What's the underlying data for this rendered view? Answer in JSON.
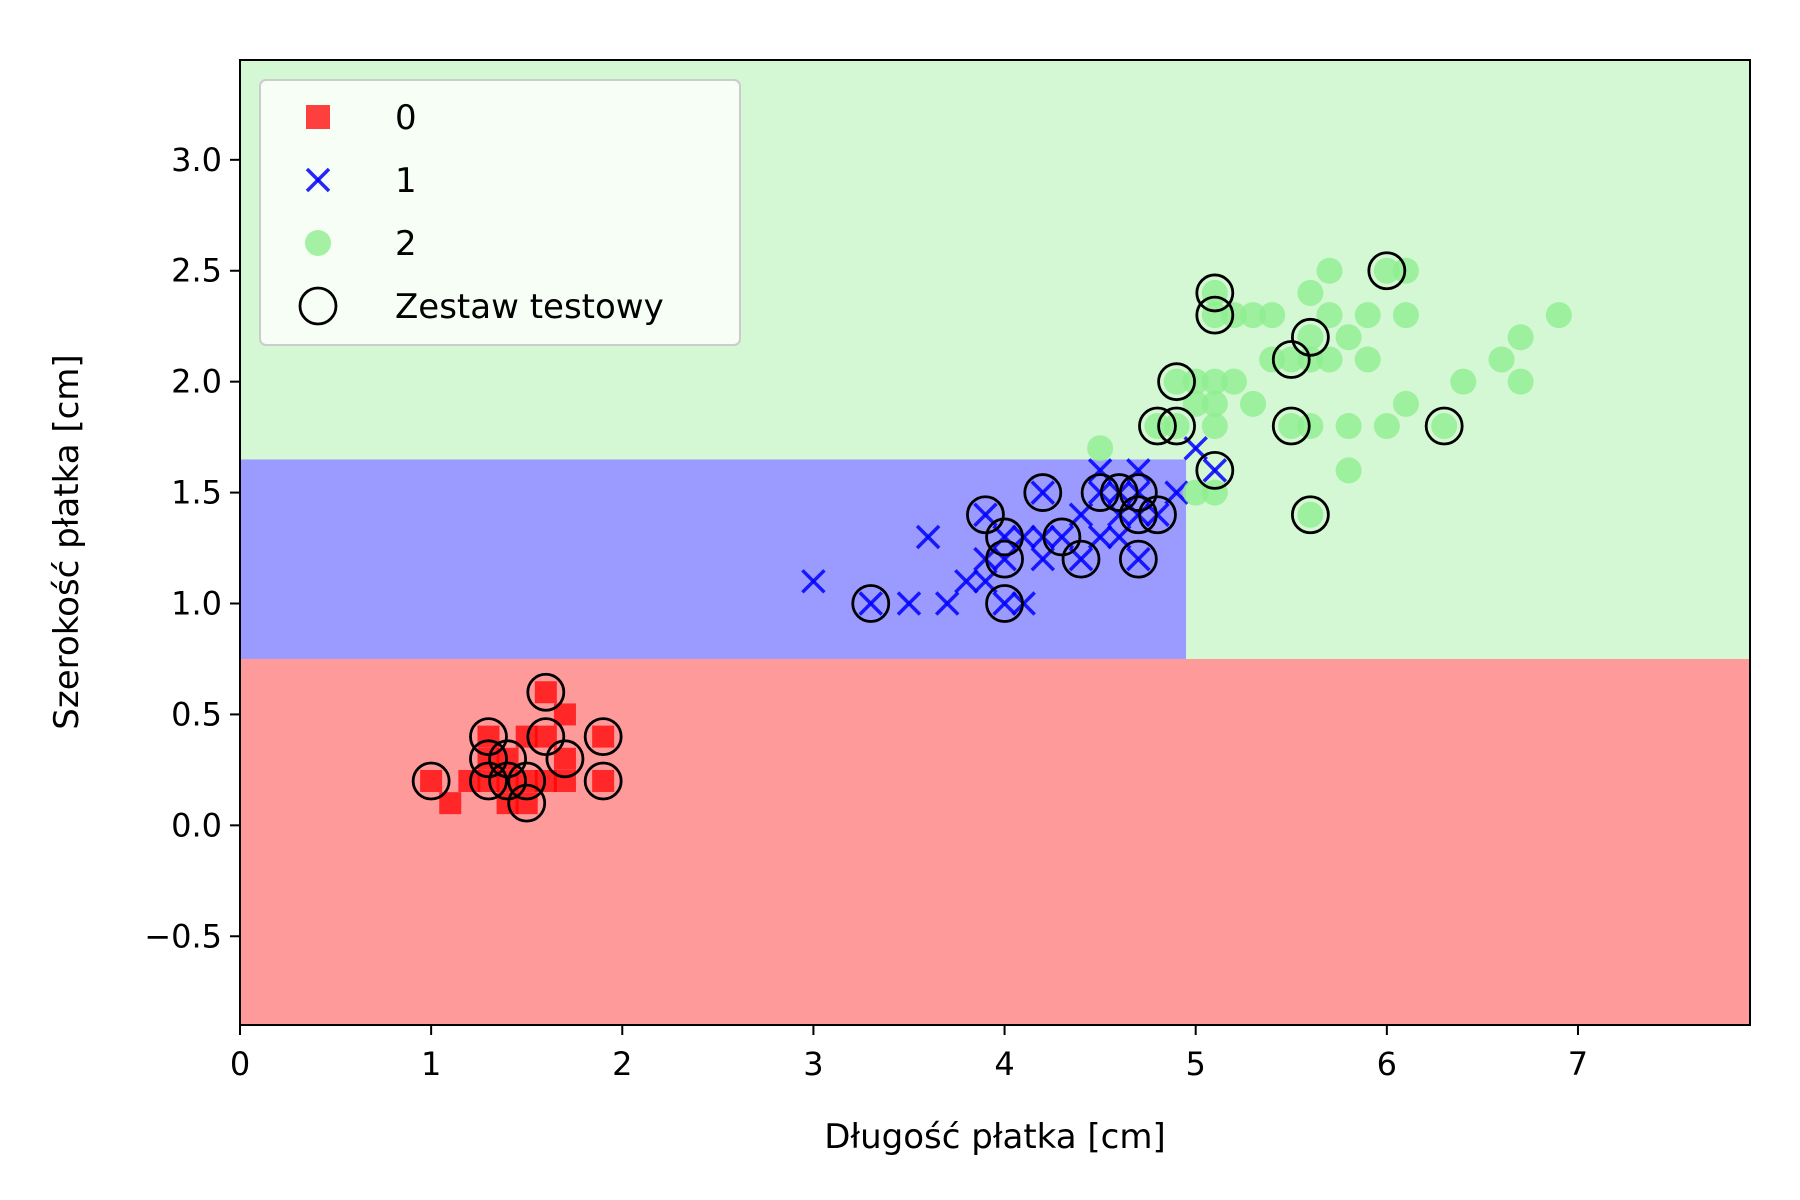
{
  "chart_data": {
    "type": "scatter",
    "xlabel": "Długość płatka [cm]",
    "ylabel": "Szerokość płatka [cm]",
    "xlim": [
      0,
      7.9
    ],
    "ylim": [
      -0.9,
      3.45
    ],
    "xticks": [
      0,
      1,
      2,
      3,
      4,
      5,
      6,
      7
    ],
    "yticks": [
      -0.5,
      0.0,
      0.5,
      1.0,
      1.5,
      2.0,
      2.5,
      3.0
    ],
    "xtick_labels": [
      "0",
      "1",
      "2",
      "3",
      "4",
      "5",
      "6",
      "7"
    ],
    "ytick_labels": [
      "−0.5",
      "0.0",
      "0.5",
      "1.0",
      "1.5",
      "2.0",
      "2.5",
      "3.0"
    ],
    "grid": false,
    "legend_position": "top-left",
    "colors": {
      "class0": "#ff0000",
      "class1": "#0000ff",
      "class2": "#90ee90",
      "region0": "#ff9a9a",
      "region1": "#9a9aff",
      "region2": "#d3f8d3",
      "test_ring": "#000000"
    },
    "decision_regions": [
      {
        "class": "0",
        "x": [
          0,
          7.9
        ],
        "y": [
          -0.9,
          0.75
        ]
      },
      {
        "class": "1",
        "x": [
          0,
          4.95
        ],
        "y": [
          0.75,
          1.65
        ]
      },
      {
        "class": "2",
        "x": [
          4.95,
          7.9
        ],
        "y": [
          0.75,
          1.65
        ]
      },
      {
        "class": "2",
        "x": [
          0,
          7.9
        ],
        "y": [
          1.65,
          3.45
        ]
      }
    ],
    "series": [
      {
        "name": "0",
        "marker": "square",
        "points": [
          [
            1.0,
            0.2
          ],
          [
            1.1,
            0.1
          ],
          [
            1.2,
            0.2
          ],
          [
            1.3,
            0.2
          ],
          [
            1.3,
            0.3
          ],
          [
            1.3,
            0.4
          ],
          [
            1.4,
            0.1
          ],
          [
            1.4,
            0.2
          ],
          [
            1.4,
            0.3
          ],
          [
            1.5,
            0.1
          ],
          [
            1.5,
            0.2
          ],
          [
            1.5,
            0.4
          ],
          [
            1.6,
            0.2
          ],
          [
            1.6,
            0.4
          ],
          [
            1.6,
            0.6
          ],
          [
            1.7,
            0.2
          ],
          [
            1.7,
            0.3
          ],
          [
            1.7,
            0.5
          ],
          [
            1.9,
            0.2
          ],
          [
            1.9,
            0.4
          ]
        ]
      },
      {
        "name": "1",
        "marker": "x",
        "points": [
          [
            3.0,
            1.1
          ],
          [
            3.3,
            1.0
          ],
          [
            3.5,
            1.0
          ],
          [
            3.6,
            1.3
          ],
          [
            3.7,
            1.0
          ],
          [
            3.8,
            1.1
          ],
          [
            3.9,
            1.1
          ],
          [
            3.9,
            1.2
          ],
          [
            3.9,
            1.4
          ],
          [
            4.0,
            1.0
          ],
          [
            4.0,
            1.2
          ],
          [
            4.0,
            1.3
          ],
          [
            4.1,
            1.0
          ],
          [
            4.1,
            1.3
          ],
          [
            4.2,
            1.2
          ],
          [
            4.2,
            1.3
          ],
          [
            4.2,
            1.5
          ],
          [
            4.3,
            1.3
          ],
          [
            4.4,
            1.2
          ],
          [
            4.4,
            1.4
          ],
          [
            4.5,
            1.3
          ],
          [
            4.5,
            1.5
          ],
          [
            4.5,
            1.6
          ],
          [
            4.6,
            1.3
          ],
          [
            4.6,
            1.4
          ],
          [
            4.6,
            1.5
          ],
          [
            4.7,
            1.2
          ],
          [
            4.7,
            1.4
          ],
          [
            4.7,
            1.5
          ],
          [
            4.7,
            1.6
          ],
          [
            4.8,
            1.4
          ],
          [
            4.9,
            1.5
          ],
          [
            5.0,
            1.7
          ],
          [
            5.1,
            1.6
          ]
        ]
      },
      {
        "name": "2",
        "marker": "circle",
        "points": [
          [
            4.5,
            1.7
          ],
          [
            4.8,
            1.8
          ],
          [
            4.9,
            1.8
          ],
          [
            4.9,
            2.0
          ],
          [
            5.0,
            1.5
          ],
          [
            5.0,
            1.9
          ],
          [
            5.0,
            2.0
          ],
          [
            5.1,
            1.5
          ],
          [
            5.1,
            1.8
          ],
          [
            5.1,
            1.9
          ],
          [
            5.1,
            2.0
          ],
          [
            5.1,
            2.3
          ],
          [
            5.1,
            2.4
          ],
          [
            5.2,
            2.0
          ],
          [
            5.2,
            2.3
          ],
          [
            5.3,
            1.9
          ],
          [
            5.3,
            2.3
          ],
          [
            5.4,
            2.1
          ],
          [
            5.4,
            2.3
          ],
          [
            5.5,
            1.8
          ],
          [
            5.5,
            2.1
          ],
          [
            5.6,
            1.4
          ],
          [
            5.6,
            1.8
          ],
          [
            5.6,
            2.1
          ],
          [
            5.6,
            2.2
          ],
          [
            5.6,
            2.4
          ],
          [
            5.7,
            2.1
          ],
          [
            5.7,
            2.3
          ],
          [
            5.7,
            2.5
          ],
          [
            5.8,
            1.6
          ],
          [
            5.8,
            1.8
          ],
          [
            5.8,
            2.2
          ],
          [
            5.9,
            2.1
          ],
          [
            5.9,
            2.3
          ],
          [
            6.0,
            1.8
          ],
          [
            6.0,
            2.5
          ],
          [
            6.1,
            1.9
          ],
          [
            6.1,
            2.3
          ],
          [
            6.1,
            2.5
          ],
          [
            6.3,
            1.8
          ],
          [
            6.4,
            2.0
          ],
          [
            6.6,
            2.1
          ],
          [
            6.7,
            2.0
          ],
          [
            6.7,
            2.2
          ],
          [
            6.9,
            2.3
          ]
        ]
      },
      {
        "name": "Zestaw testowy",
        "marker": "ring",
        "points": [
          [
            1.0,
            0.2
          ],
          [
            1.3,
            0.2
          ],
          [
            1.3,
            0.3
          ],
          [
            1.3,
            0.4
          ],
          [
            1.4,
            0.2
          ],
          [
            1.4,
            0.3
          ],
          [
            1.5,
            0.1
          ],
          [
            1.5,
            0.2
          ],
          [
            1.6,
            0.4
          ],
          [
            1.6,
            0.6
          ],
          [
            1.7,
            0.3
          ],
          [
            1.9,
            0.2
          ],
          [
            1.9,
            0.4
          ],
          [
            3.3,
            1.0
          ],
          [
            3.9,
            1.4
          ],
          [
            4.0,
            1.0
          ],
          [
            4.0,
            1.2
          ],
          [
            4.0,
            1.3
          ],
          [
            4.2,
            1.5
          ],
          [
            4.3,
            1.3
          ],
          [
            4.4,
            1.2
          ],
          [
            4.5,
            1.5
          ],
          [
            4.6,
            1.5
          ],
          [
            4.7,
            1.2
          ],
          [
            4.7,
            1.4
          ],
          [
            4.7,
            1.5
          ],
          [
            4.8,
            1.4
          ],
          [
            4.8,
            1.8
          ],
          [
            4.9,
            1.8
          ],
          [
            4.9,
            2.0
          ],
          [
            5.1,
            1.6
          ],
          [
            5.1,
            2.3
          ],
          [
            5.1,
            2.4
          ],
          [
            5.5,
            1.8
          ],
          [
            5.5,
            2.1
          ],
          [
            5.6,
            1.4
          ],
          [
            5.6,
            2.2
          ],
          [
            6.0,
            2.5
          ],
          [
            6.3,
            1.8
          ]
        ]
      }
    ]
  }
}
